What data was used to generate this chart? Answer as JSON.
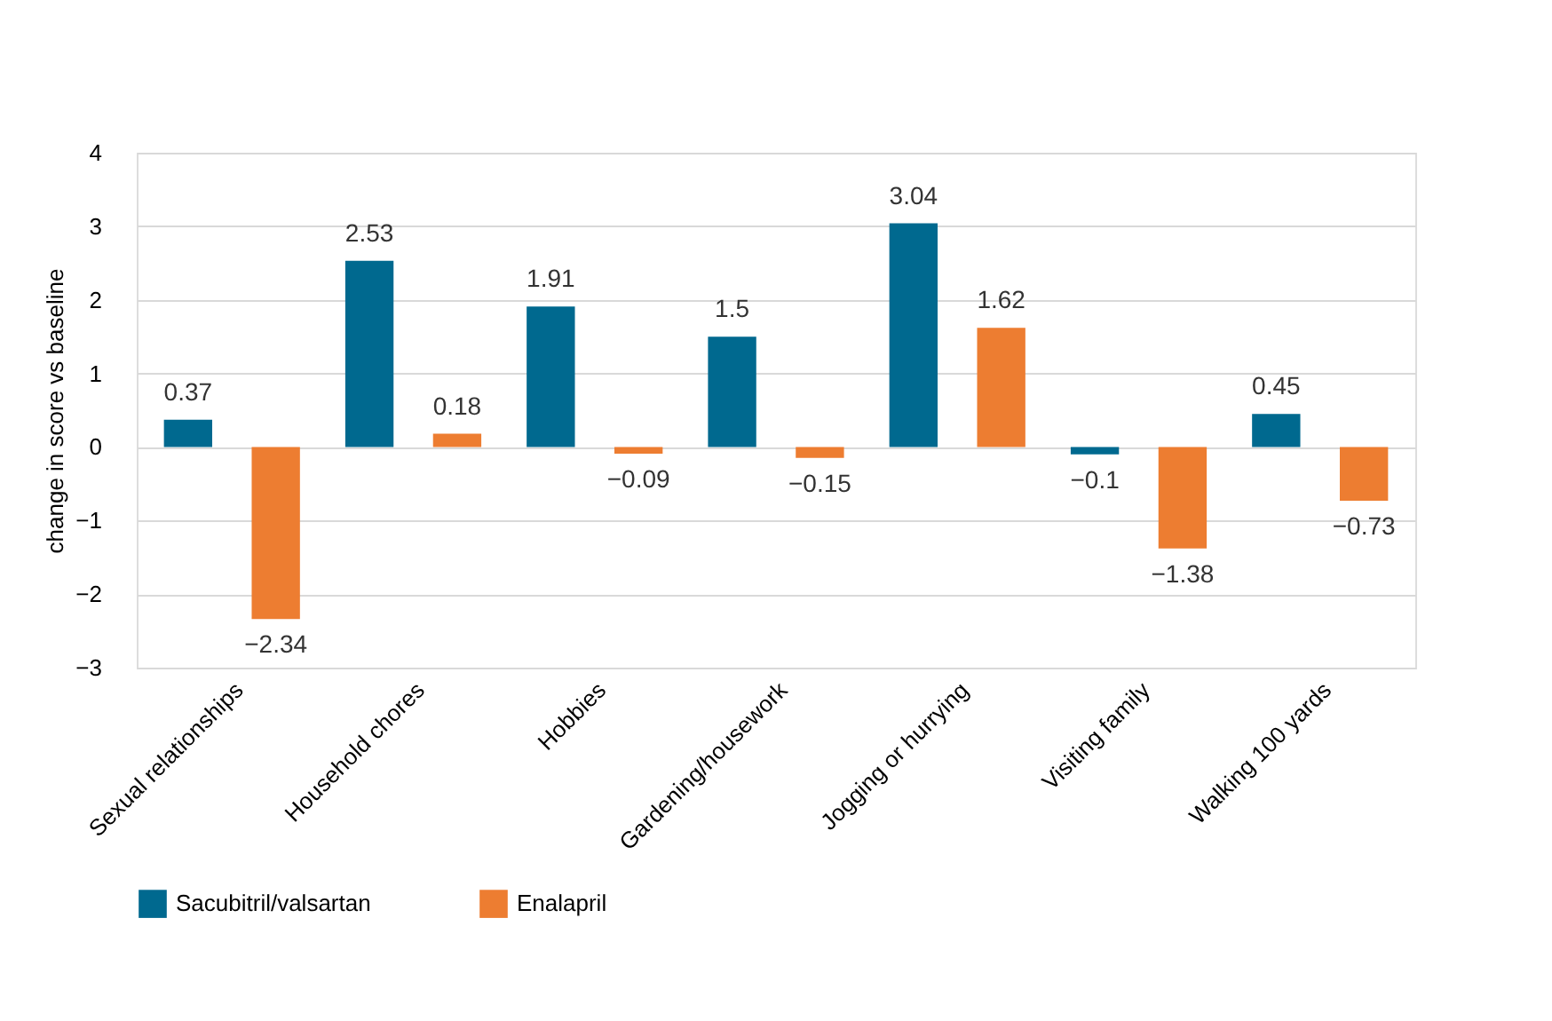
{
  "chart_data": {
    "type": "bar",
    "ylabel": "change in score vs baseline",
    "categories": [
      "Sexual relationships",
      "Household chores",
      "Hobbies",
      "Gardening/housework",
      "Jogging or hurrying",
      "Visiting family",
      "Walking 100 yards"
    ],
    "series": [
      {
        "name": "Sacubitril/valsartan",
        "color": "#00698f",
        "values": [
          0.37,
          2.53,
          1.91,
          1.5,
          3.04,
          -0.1,
          0.45
        ]
      },
      {
        "name": "Enalapril",
        "color": "#ed7d31",
        "values": [
          -2.34,
          0.18,
          -0.09,
          -0.15,
          1.62,
          -1.38,
          -0.73
        ]
      }
    ],
    "ylim": [
      -3,
      4
    ],
    "yticks": [
      -3,
      -2,
      -1,
      0,
      1,
      2,
      3,
      4
    ],
    "grid": "y",
    "legend": "bottom",
    "data_labels": true
  }
}
